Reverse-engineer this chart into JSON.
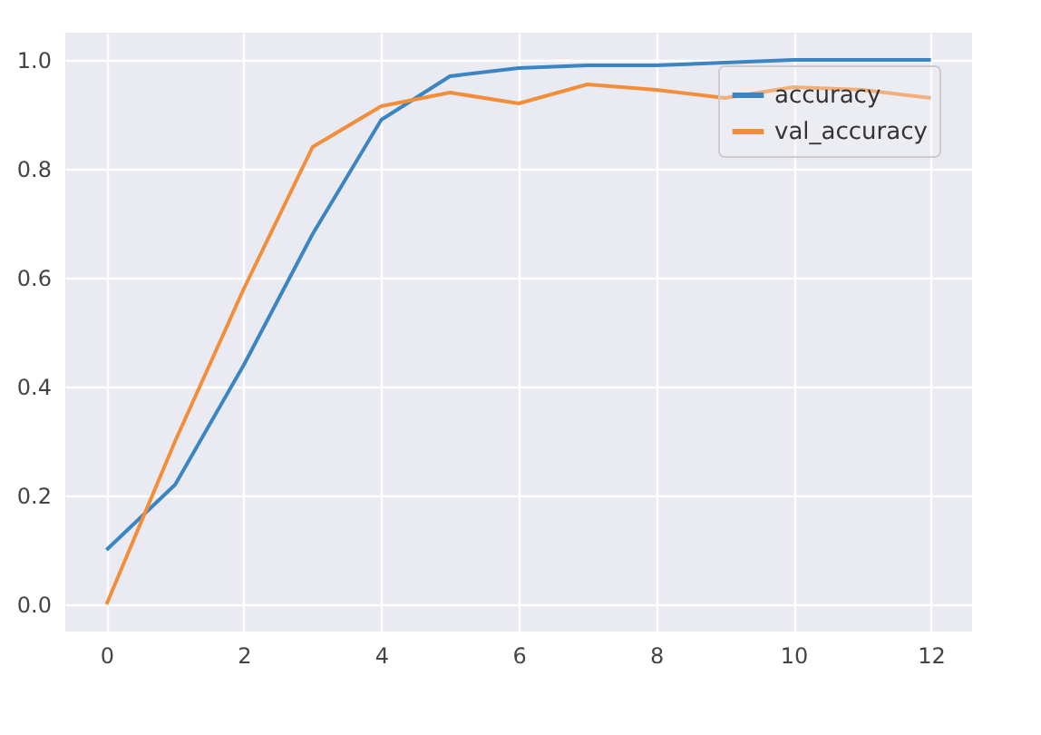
{
  "chart_data": {
    "type": "line",
    "x": [
      0,
      1,
      2,
      3,
      4,
      5,
      6,
      7,
      8,
      9,
      10,
      11,
      12
    ],
    "series": [
      {
        "name": "accuracy",
        "color": "#3a85c2",
        "values": [
          0.1,
          0.22,
          0.44,
          0.68,
          0.89,
          0.97,
          0.985,
          0.99,
          0.99,
          0.995,
          1.0,
          1.0,
          1.0
        ]
      },
      {
        "name": "val_accuracy",
        "color": "#f28e3a",
        "values": [
          0.0,
          0.3,
          0.58,
          0.84,
          0.915,
          0.94,
          0.92,
          0.955,
          0.945,
          0.93,
          0.95,
          0.945,
          0.93
        ]
      }
    ],
    "xlim": [
      -0.6,
      12.6
    ],
    "ylim": [
      -0.05,
      1.05
    ],
    "xticks": [
      0,
      2,
      4,
      6,
      8,
      10,
      12
    ],
    "yticks": [
      {
        "value": 0,
        "label": "0.0"
      },
      0.2,
      0.4,
      0.6,
      0.8,
      {
        "value": 1,
        "label": "1.0"
      }
    ],
    "grid": true,
    "legend": "top right",
    "marker": "none",
    "line_style": "solid"
  }
}
